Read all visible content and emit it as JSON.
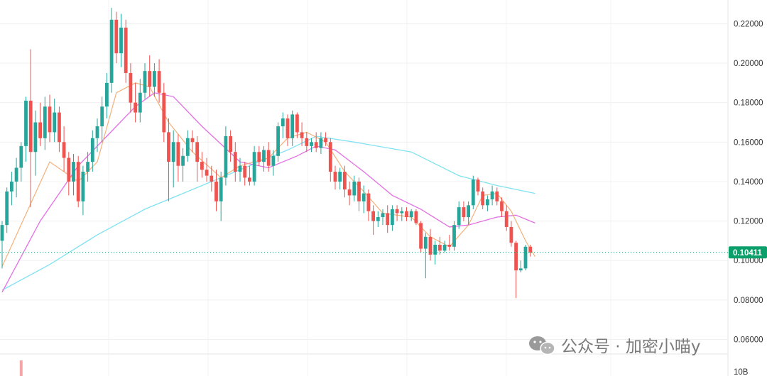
{
  "chart_data": {
    "type": "candlestick",
    "y_axis": {
      "position": "right",
      "ylim": [
        0.053,
        0.232
      ],
      "ticks": [
        {
          "value": 0.22,
          "label": "0.22000"
        },
        {
          "value": 0.2,
          "label": "0.20000"
        },
        {
          "value": 0.18,
          "label": "0.18000"
        },
        {
          "value": 0.16,
          "label": "0.16000"
        },
        {
          "value": 0.14,
          "label": "0.14000"
        },
        {
          "value": 0.12,
          "label": "0.12000"
        },
        {
          "value": 0.1,
          "label": "0.10000"
        },
        {
          "value": 0.08,
          "label": "0.08000"
        },
        {
          "value": 0.06,
          "label": "0.06000"
        }
      ]
    },
    "volume_axis_label": "10B",
    "last_price": {
      "value": 0.10411,
      "label": "0.10411"
    },
    "grid": true,
    "colors": {
      "up": "#26a69a",
      "down": "#ef5350",
      "ma_short": "#f5b07a",
      "ma_mid": "#e36fe3",
      "ma_long": "#80e2f2",
      "price_tag": "#0b9f6b"
    },
    "candles": [
      [
        0.11,
        0.12,
        0.096,
        0.118
      ],
      [
        0.118,
        0.137,
        0.114,
        0.135
      ],
      [
        0.135,
        0.145,
        0.128,
        0.14
      ],
      [
        0.14,
        0.152,
        0.132,
        0.147
      ],
      [
        0.147,
        0.16,
        0.14,
        0.158
      ],
      [
        0.158,
        0.183,
        0.15,
        0.181
      ],
      [
        0.181,
        0.207,
        0.127,
        0.155
      ],
      [
        0.155,
        0.176,
        0.143,
        0.17
      ],
      [
        0.17,
        0.18,
        0.158,
        0.162
      ],
      [
        0.162,
        0.183,
        0.156,
        0.178
      ],
      [
        0.178,
        0.184,
        0.16,
        0.165
      ],
      [
        0.165,
        0.182,
        0.16,
        0.175
      ],
      [
        0.175,
        0.178,
        0.155,
        0.16
      ],
      [
        0.16,
        0.168,
        0.145,
        0.152
      ],
      [
        0.152,
        0.155,
        0.133,
        0.14
      ],
      [
        0.14,
        0.154,
        0.133,
        0.15
      ],
      [
        0.15,
        0.153,
        0.127,
        0.13
      ],
      [
        0.13,
        0.148,
        0.123,
        0.145
      ],
      [
        0.145,
        0.155,
        0.14,
        0.15
      ],
      [
        0.15,
        0.166,
        0.145,
        0.162
      ],
      [
        0.162,
        0.172,
        0.155,
        0.168
      ],
      [
        0.168,
        0.183,
        0.16,
        0.178
      ],
      [
        0.178,
        0.195,
        0.172,
        0.19
      ],
      [
        0.19,
        0.228,
        0.185,
        0.222
      ],
      [
        0.222,
        0.226,
        0.2,
        0.205
      ],
      [
        0.205,
        0.225,
        0.198,
        0.218
      ],
      [
        0.218,
        0.222,
        0.19,
        0.195
      ],
      [
        0.195,
        0.2,
        0.175,
        0.18
      ],
      [
        0.18,
        0.19,
        0.17,
        0.175
      ],
      [
        0.175,
        0.192,
        0.17,
        0.185
      ],
      [
        0.185,
        0.2,
        0.182,
        0.196
      ],
      [
        0.196,
        0.204,
        0.183,
        0.188
      ],
      [
        0.188,
        0.2,
        0.183,
        0.196
      ],
      [
        0.196,
        0.202,
        0.18,
        0.185
      ],
      [
        0.185,
        0.19,
        0.16,
        0.165
      ],
      [
        0.165,
        0.172,
        0.13,
        0.15
      ],
      [
        0.15,
        0.166,
        0.137,
        0.16
      ],
      [
        0.16,
        0.164,
        0.14,
        0.148
      ],
      [
        0.148,
        0.157,
        0.14,
        0.153
      ],
      [
        0.153,
        0.166,
        0.15,
        0.162
      ],
      [
        0.162,
        0.166,
        0.155,
        0.16
      ],
      [
        0.16,
        0.163,
        0.14,
        0.15
      ],
      [
        0.15,
        0.155,
        0.142,
        0.146
      ],
      [
        0.146,
        0.152,
        0.14,
        0.143
      ],
      [
        0.143,
        0.148,
        0.135,
        0.14
      ],
      [
        0.14,
        0.146,
        0.125,
        0.13
      ],
      [
        0.13,
        0.145,
        0.12,
        0.142
      ],
      [
        0.142,
        0.168,
        0.138,
        0.163
      ],
      [
        0.163,
        0.166,
        0.15,
        0.155
      ],
      [
        0.155,
        0.16,
        0.14,
        0.145
      ],
      [
        0.145,
        0.152,
        0.14,
        0.148
      ],
      [
        0.148,
        0.15,
        0.138,
        0.142
      ],
      [
        0.142,
        0.148,
        0.138,
        0.14
      ],
      [
        0.14,
        0.158,
        0.138,
        0.155
      ],
      [
        0.155,
        0.158,
        0.148,
        0.15
      ],
      [
        0.15,
        0.158,
        0.145,
        0.156
      ],
      [
        0.156,
        0.16,
        0.145,
        0.148
      ],
      [
        0.148,
        0.156,
        0.143,
        0.153
      ],
      [
        0.153,
        0.17,
        0.15,
        0.168
      ],
      [
        0.168,
        0.175,
        0.162,
        0.172
      ],
      [
        0.172,
        0.174,
        0.158,
        0.162
      ],
      [
        0.162,
        0.176,
        0.158,
        0.174
      ],
      [
        0.174,
        0.175,
        0.162,
        0.165
      ],
      [
        0.165,
        0.17,
        0.158,
        0.162
      ],
      [
        0.162,
        0.165,
        0.155,
        0.158
      ],
      [
        0.158,
        0.162,
        0.155,
        0.16
      ],
      [
        0.16,
        0.165,
        0.155,
        0.157
      ],
      [
        0.157,
        0.165,
        0.154,
        0.162
      ],
      [
        0.162,
        0.165,
        0.158,
        0.16
      ],
      [
        0.16,
        0.162,
        0.14,
        0.145
      ],
      [
        0.145,
        0.148,
        0.136,
        0.14
      ],
      [
        0.14,
        0.147,
        0.136,
        0.145
      ],
      [
        0.145,
        0.148,
        0.132,
        0.136
      ],
      [
        0.136,
        0.14,
        0.128,
        0.133
      ],
      [
        0.133,
        0.143,
        0.13,
        0.14
      ],
      [
        0.14,
        0.142,
        0.125,
        0.13
      ],
      [
        0.13,
        0.138,
        0.124,
        0.134
      ],
      [
        0.134,
        0.136,
        0.12,
        0.125
      ],
      [
        0.125,
        0.128,
        0.113,
        0.12
      ],
      [
        0.12,
        0.125,
        0.117,
        0.122
      ],
      [
        0.122,
        0.126,
        0.118,
        0.124
      ],
      [
        0.124,
        0.128,
        0.114,
        0.118
      ],
      [
        0.118,
        0.128,
        0.115,
        0.126
      ],
      [
        0.126,
        0.128,
        0.12,
        0.124
      ],
      [
        0.124,
        0.127,
        0.12,
        0.125
      ],
      [
        0.125,
        0.127,
        0.12,
        0.122
      ],
      [
        0.122,
        0.126,
        0.12,
        0.125
      ],
      [
        0.125,
        0.126,
        0.118,
        0.119
      ],
      [
        0.119,
        0.12,
        0.104,
        0.106
      ],
      [
        0.106,
        0.114,
        0.091,
        0.112
      ],
      [
        0.112,
        0.116,
        0.1,
        0.103
      ],
      [
        0.103,
        0.11,
        0.098,
        0.108
      ],
      [
        0.108,
        0.112,
        0.103,
        0.105
      ],
      [
        0.105,
        0.11,
        0.104,
        0.108
      ],
      [
        0.108,
        0.113,
        0.105,
        0.107
      ],
      [
        0.107,
        0.12,
        0.105,
        0.118
      ],
      [
        0.118,
        0.13,
        0.116,
        0.127
      ],
      [
        0.127,
        0.13,
        0.12,
        0.122
      ],
      [
        0.122,
        0.13,
        0.118,
        0.128
      ],
      [
        0.128,
        0.143,
        0.126,
        0.141
      ],
      [
        0.141,
        0.142,
        0.133,
        0.135
      ],
      [
        0.135,
        0.137,
        0.126,
        0.128
      ],
      [
        0.128,
        0.133,
        0.125,
        0.131
      ],
      [
        0.131,
        0.138,
        0.128,
        0.135
      ],
      [
        0.135,
        0.137,
        0.128,
        0.13
      ],
      [
        0.13,
        0.132,
        0.122,
        0.125
      ],
      [
        0.125,
        0.128,
        0.115,
        0.117
      ],
      [
        0.117,
        0.12,
        0.107,
        0.109
      ],
      [
        0.109,
        0.11,
        0.081,
        0.095
      ],
      [
        0.095,
        0.1,
        0.094,
        0.096
      ],
      [
        0.096,
        0.108,
        0.095,
        0.107
      ],
      [
        0.107,
        0.108,
        0.102,
        0.104
      ]
    ],
    "ma_short": [
      [
        0,
        0.097
      ],
      [
        10,
        0.15
      ],
      [
        16,
        0.14
      ],
      [
        20,
        0.15
      ],
      [
        24,
        0.185
      ],
      [
        28,
        0.19
      ],
      [
        31,
        0.188
      ],
      [
        35,
        0.17
      ],
      [
        40,
        0.155
      ],
      [
        46,
        0.142
      ],
      [
        50,
        0.148
      ],
      [
        56,
        0.152
      ],
      [
        60,
        0.162
      ],
      [
        64,
        0.165
      ],
      [
        68,
        0.16
      ],
      [
        72,
        0.145
      ],
      [
        76,
        0.135
      ],
      [
        80,
        0.124
      ],
      [
        86,
        0.122
      ],
      [
        90,
        0.112
      ],
      [
        94,
        0.107
      ],
      [
        98,
        0.118
      ],
      [
        101,
        0.133
      ],
      [
        104,
        0.134
      ],
      [
        107,
        0.125
      ],
      [
        110,
        0.11
      ],
      [
        112,
        0.102
      ]
    ],
    "ma_mid": [
      [
        0,
        0.084
      ],
      [
        8,
        0.12
      ],
      [
        16,
        0.148
      ],
      [
        22,
        0.163
      ],
      [
        28,
        0.178
      ],
      [
        32,
        0.185
      ],
      [
        36,
        0.183
      ],
      [
        42,
        0.168
      ],
      [
        50,
        0.15
      ],
      [
        56,
        0.147
      ],
      [
        62,
        0.153
      ],
      [
        66,
        0.158
      ],
      [
        70,
        0.156
      ],
      [
        76,
        0.145
      ],
      [
        82,
        0.133
      ],
      [
        88,
        0.126
      ],
      [
        94,
        0.117
      ],
      [
        98,
        0.118
      ],
      [
        104,
        0.122
      ],
      [
        108,
        0.123
      ],
      [
        112,
        0.119
      ]
    ],
    "ma_long": [
      [
        0,
        0.085
      ],
      [
        10,
        0.098
      ],
      [
        20,
        0.113
      ],
      [
        30,
        0.126
      ],
      [
        40,
        0.136
      ],
      [
        50,
        0.146
      ],
      [
        60,
        0.156
      ],
      [
        66,
        0.163
      ],
      [
        74,
        0.16
      ],
      [
        86,
        0.155
      ],
      [
        96,
        0.143
      ],
      [
        104,
        0.138
      ],
      [
        112,
        0.134
      ]
    ],
    "volume_bars": [
      {
        "index": 4,
        "height": 22
      }
    ]
  },
  "watermark": {
    "text": "公众号 · 加密小喵y",
    "icon": "wechat-icon"
  }
}
